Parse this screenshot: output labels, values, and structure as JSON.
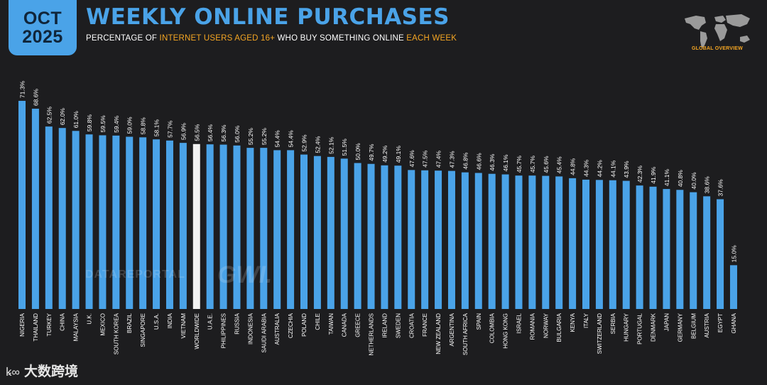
{
  "header": {
    "date_month": "OCT",
    "date_year": "2025",
    "title": "WEEKLY ONLINE PURCHASES",
    "subtitle_parts": [
      {
        "text": "PERCENTAGE OF ",
        "highlight": false
      },
      {
        "text": "INTERNET USERS AGED 16+",
        "highlight": true
      },
      {
        "text": " WHO BUY SOMETHING ONLINE ",
        "highlight": false
      },
      {
        "text": "EACH WEEK",
        "highlight": true
      }
    ],
    "logo_label": "GLOBAL OVERVIEW",
    "logo_icon": "world-map-icon"
  },
  "watermarks": {
    "datareportal": "DATAREPORTAL",
    "gwi": "GWI."
  },
  "brand": {
    "mark": "ꝃ∞",
    "name": "大数跨境"
  },
  "colors": {
    "background": "#1d1d1f",
    "accent": "#4aa3e8",
    "highlight": "#f5a623",
    "highlight_bar": "#f2f2f2"
  },
  "chart_data": {
    "type": "bar",
    "categories": [
      "NIGERIA",
      "THAILAND",
      "TURKEY",
      "CHINA",
      "MALAYSIA",
      "U.K.",
      "MEXICO",
      "SOUTH KOREA",
      "BRAZIL",
      "SINGAPORE",
      "U.S.A.",
      "INDIA",
      "VIETNAM",
      "WORLDWIDE",
      "U.A.E.",
      "PHILIPPINES",
      "RUSSIA",
      "INDONESIA",
      "SAUDI ARABIA",
      "AUSTRALIA",
      "CZECHIA",
      "POLAND",
      "CHILE",
      "TAIWAN",
      "CANADA",
      "GREECE",
      "NETHERLANDS",
      "IRELAND",
      "SWEDEN",
      "CROATIA",
      "FRANCE",
      "NEW ZEALAND",
      "ARGENTINA",
      "SOUTH AFRICA",
      "SPAIN",
      "COLOMBIA",
      "HONG KONG",
      "ISRAEL",
      "ROMANIA",
      "NORWAY",
      "BULGARIA",
      "KENYA",
      "ITALY",
      "SWITZERLAND",
      "SERBIA",
      "HUNGARY",
      "PORTUGAL",
      "DENMARK",
      "JAPAN",
      "GERMANY",
      "BELGIUM",
      "AUSTRIA",
      "EGYPT",
      "GHANA"
    ],
    "values": [
      71.3,
      68.6,
      62.5,
      62.0,
      61.0,
      59.8,
      59.5,
      59.4,
      59.0,
      58.8,
      58.1,
      57.7,
      56.9,
      56.5,
      56.4,
      56.3,
      56.0,
      55.2,
      55.2,
      54.4,
      54.4,
      52.9,
      52.4,
      52.1,
      51.5,
      50.0,
      49.7,
      49.2,
      49.1,
      47.6,
      47.5,
      47.4,
      47.3,
      46.8,
      46.6,
      46.3,
      46.1,
      45.7,
      45.7,
      45.6,
      45.4,
      44.8,
      44.3,
      44.2,
      44.1,
      43.9,
      42.3,
      41.9,
      41.1,
      40.8,
      40.0,
      38.6,
      37.6,
      15.0
    ],
    "value_labels": [
      "71.3%",
      "68.6%",
      "62.5%",
      "62.0%",
      "61.0%",
      "59.8%",
      "59.5%",
      "59.4%",
      "59.0%",
      "58.8%",
      "58.1%",
      "57.7%",
      "56.9%",
      "56.5%",
      "56.4%",
      "56.3%",
      "56.0%",
      "55.2%",
      "55.2%",
      "54.4%",
      "54.4%",
      "52.9%",
      "52.4%",
      "52.1%",
      "51.5%",
      "50.0%",
      "49.7%",
      "49.2%",
      "49.1%",
      "47.6%",
      "47.5%",
      "47.4%",
      "47.3%",
      "46.8%",
      "46.6%",
      "46.3%",
      "46.1%",
      "45.7%",
      "45.7%",
      "45.6%",
      "45.4%",
      "44.8%",
      "44.3%",
      "44.2%",
      "44.1%",
      "43.9%",
      "42.3%",
      "41.9%",
      "41.1%",
      "40.8%",
      "40.0%",
      "38.6%",
      "37.6%",
      "15.0%"
    ],
    "highlight_category": "WORLDWIDE",
    "ylim": [
      0,
      100
    ],
    "grid": false,
    "legend": "none",
    "title": "",
    "xlabel": "",
    "ylabel": ""
  }
}
